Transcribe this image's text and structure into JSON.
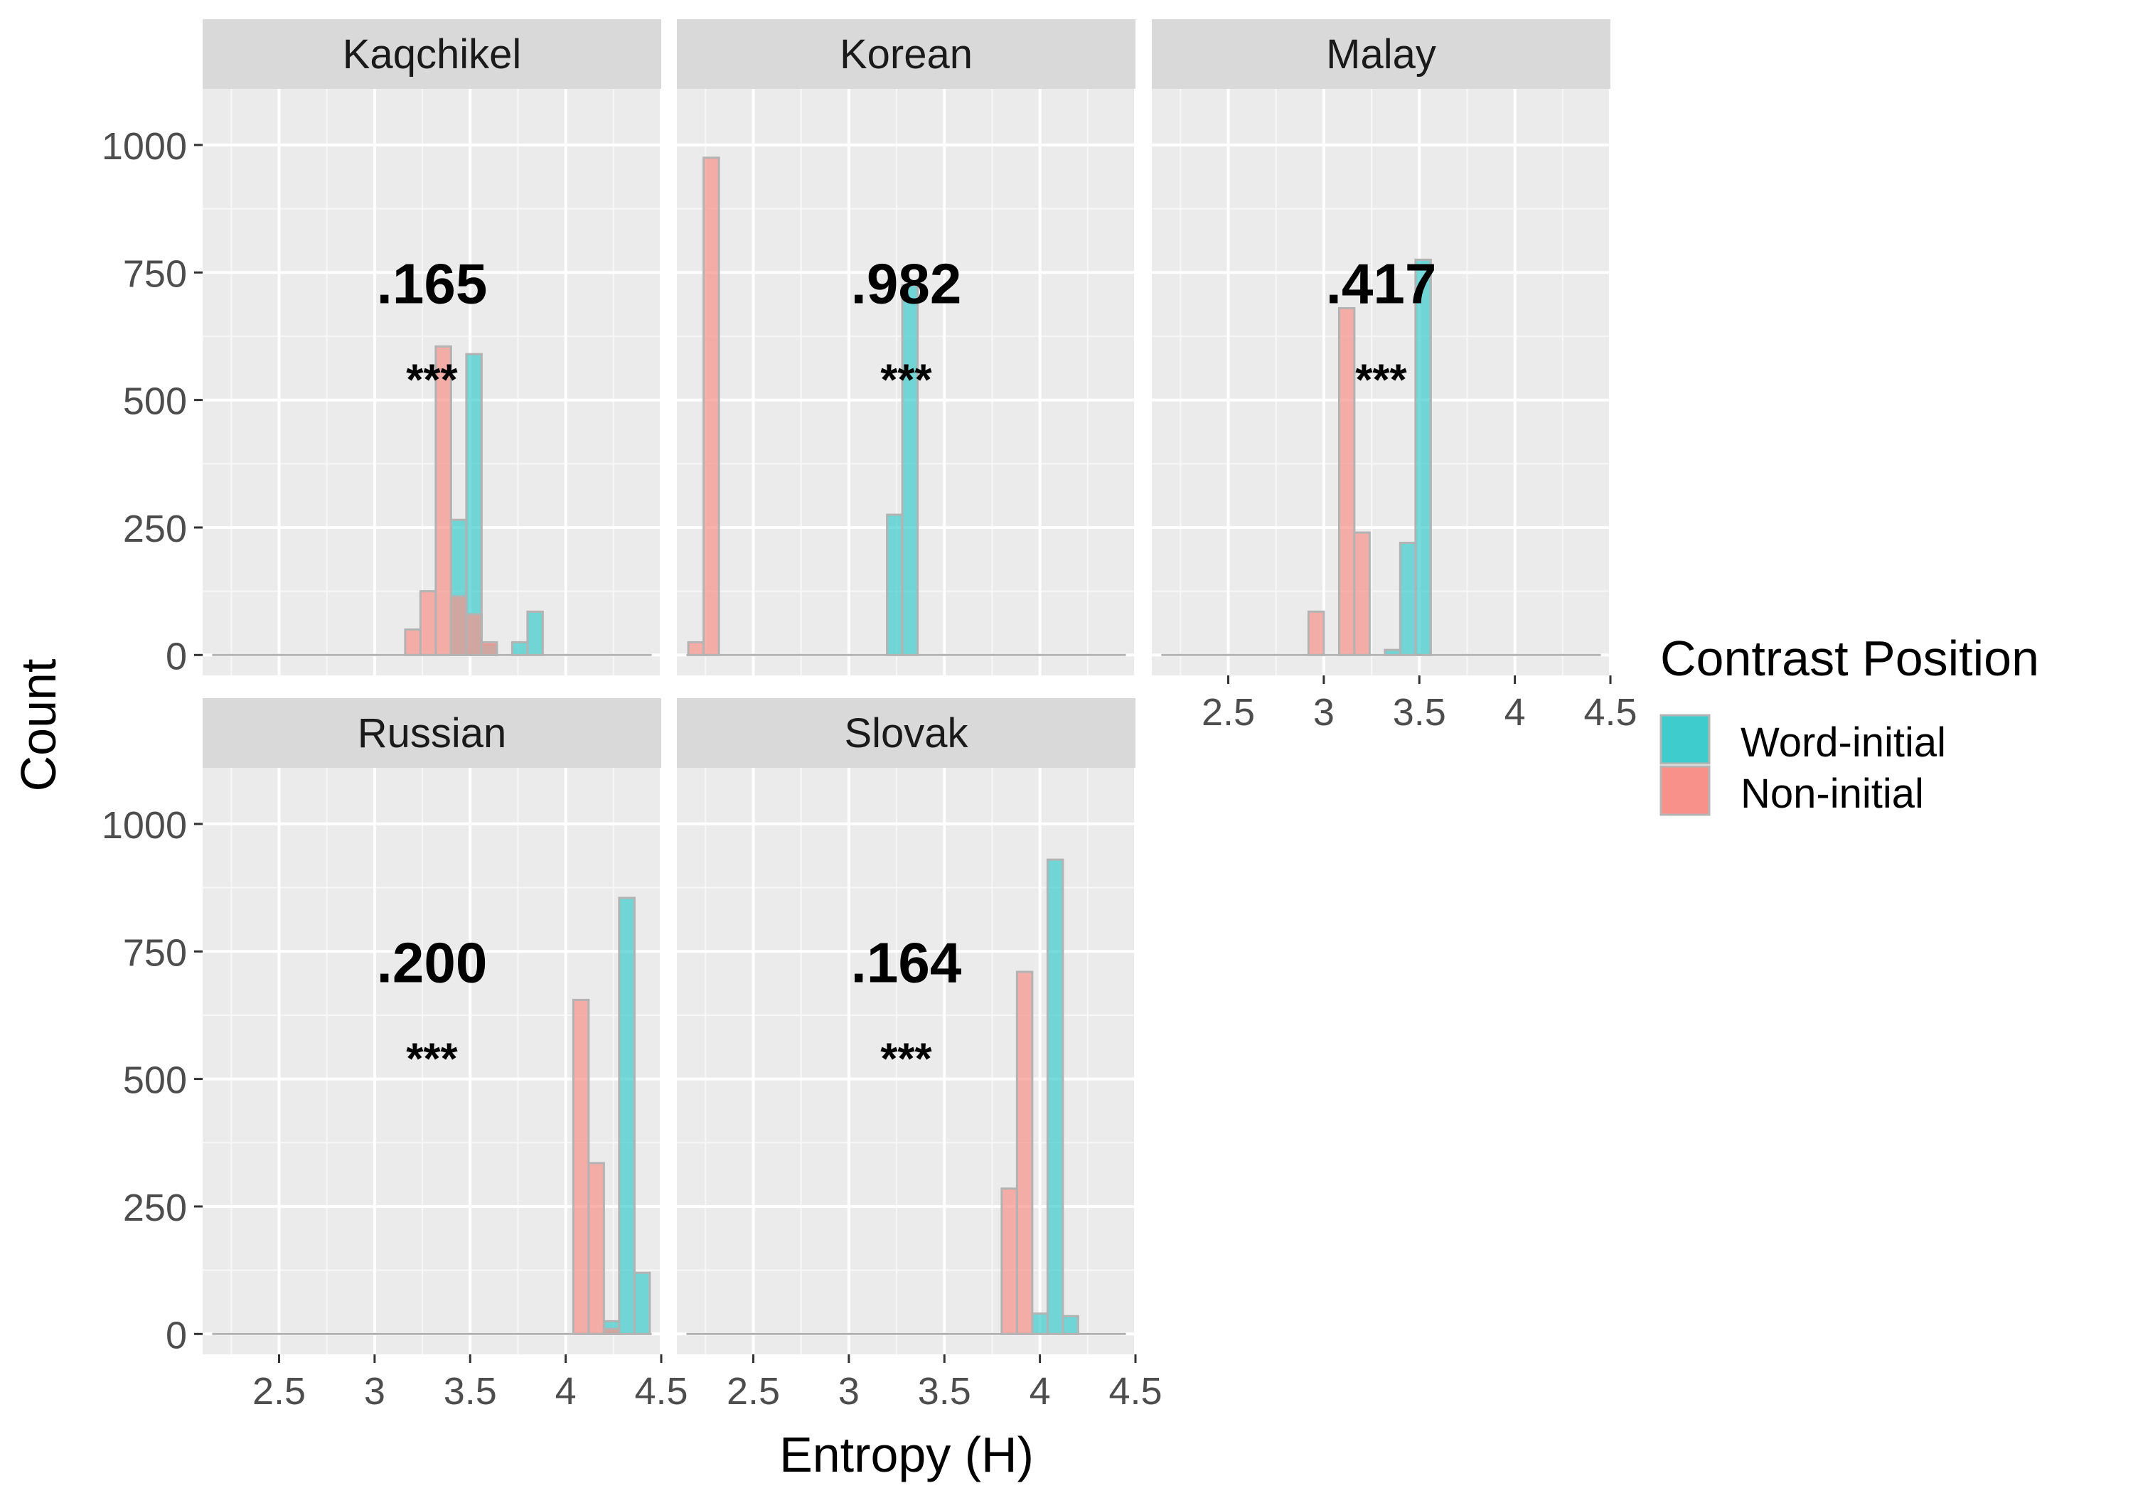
{
  "chart_data": {
    "type": "histogram",
    "layout": "facet-wrap",
    "x_axis_label": "Entropy (H)",
    "y_axis_label": "Count",
    "x_ticks": [
      2.5,
      3,
      3.5,
      4,
      4.5
    ],
    "x_tick_labels": [
      "2.5",
      "3",
      "3.5",
      "4",
      "4.5"
    ],
    "y_ticks": [
      0,
      250,
      500,
      750,
      1000
    ],
    "y_tick_labels": [
      "0",
      "250",
      "500",
      "750",
      "1000"
    ],
    "xlim": [
      2.1,
      4.5
    ],
    "ylim": [
      -40,
      1110
    ],
    "bin_width": 0.08,
    "legend": {
      "title": "Contrast Position",
      "position": "right",
      "items": [
        {
          "label": "Word-initial",
          "color": "#3ECCCC"
        },
        {
          "label": "Non-initial",
          "color": "#F8918A"
        }
      ]
    },
    "facets": [
      {
        "title": "Kaqchikel",
        "annotation": ".165",
        "significance": "***",
        "series": [
          {
            "name": "Word-initial",
            "bins": [
              {
                "x": 3.44,
                "y": 265
              },
              {
                "x": 3.52,
                "y": 590
              },
              {
                "x": 3.6,
                "y": 20
              },
              {
                "x": 3.76,
                "y": 25
              },
              {
                "x": 3.84,
                "y": 85
              }
            ]
          },
          {
            "name": "Non-initial",
            "bins": [
              {
                "x": 3.2,
                "y": 50
              },
              {
                "x": 3.28,
                "y": 125
              },
              {
                "x": 3.36,
                "y": 605
              },
              {
                "x": 3.44,
                "y": 115
              },
              {
                "x": 3.52,
                "y": 80
              },
              {
                "x": 3.6,
                "y": 25
              }
            ]
          }
        ]
      },
      {
        "title": "Korean",
        "annotation": ".982",
        "significance": "***",
        "series": [
          {
            "name": "Word-initial",
            "bins": [
              {
                "x": 3.24,
                "y": 275
              },
              {
                "x": 3.32,
                "y": 725
              }
            ]
          },
          {
            "name": "Non-initial",
            "bins": [
              {
                "x": 2.2,
                "y": 25
              },
              {
                "x": 2.28,
                "y": 975
              }
            ]
          }
        ]
      },
      {
        "title": "Malay",
        "annotation": ".417",
        "significance": "***",
        "series": [
          {
            "name": "Word-initial",
            "bins": [
              {
                "x": 3.36,
                "y": 10
              },
              {
                "x": 3.44,
                "y": 220
              },
              {
                "x": 3.52,
                "y": 775
              }
            ]
          },
          {
            "name": "Non-initial",
            "bins": [
              {
                "x": 2.96,
                "y": 85
              },
              {
                "x": 3.12,
                "y": 680
              },
              {
                "x": 3.2,
                "y": 240
              }
            ]
          }
        ]
      },
      {
        "title": "Russian",
        "annotation": ".200",
        "significance": "***",
        "series": [
          {
            "name": "Word-initial",
            "bins": [
              {
                "x": 4.24,
                "y": 25
              },
              {
                "x": 4.32,
                "y": 855
              },
              {
                "x": 4.4,
                "y": 120
              }
            ]
          },
          {
            "name": "Non-initial",
            "bins": [
              {
                "x": 4.08,
                "y": 655
              },
              {
                "x": 4.16,
                "y": 335
              },
              {
                "x": 4.24,
                "y": 10
              }
            ]
          }
        ]
      },
      {
        "title": "Slovak",
        "annotation": ".164",
        "significance": "***",
        "series": [
          {
            "name": "Word-initial",
            "bins": [
              {
                "x": 4.0,
                "y": 40
              },
              {
                "x": 4.08,
                "y": 930
              },
              {
                "x": 4.16,
                "y": 35
              }
            ]
          },
          {
            "name": "Non-initial",
            "bins": [
              {
                "x": 3.84,
                "y": 285
              },
              {
                "x": 3.92,
                "y": 710
              }
            ]
          }
        ]
      }
    ]
  }
}
